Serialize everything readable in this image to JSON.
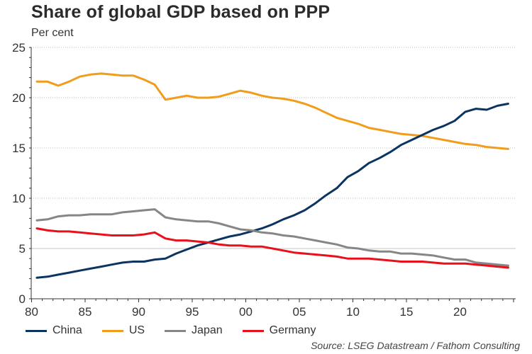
{
  "header": {
    "title": "Share of global GDP based on PPP",
    "unit": "Per cent"
  },
  "source": "Source: LSEG Datastream / Fathom Consulting",
  "chart_data": {
    "type": "line",
    "title": "Share of global GDP based on PPP",
    "ylabel": "Per cent",
    "xlabel": "",
    "ylim": [
      0,
      25
    ],
    "xlim": [
      1980,
      2025
    ],
    "yticks": [
      0,
      5,
      10,
      15,
      20,
      25
    ],
    "xticks": [
      {
        "value": 1980,
        "label": "80"
      },
      {
        "value": 1985,
        "label": "85"
      },
      {
        "value": 1990,
        "label": "90"
      },
      {
        "value": 1995,
        "label": "95"
      },
      {
        "value": 2000,
        "label": "00"
      },
      {
        "value": 2005,
        "label": "05"
      },
      {
        "value": 2010,
        "label": "10"
      },
      {
        "value": 2015,
        "label": "15"
      },
      {
        "value": 2020,
        "label": "20"
      }
    ],
    "grid": true,
    "legend_position": "bottom",
    "x": [
      1980,
      1981,
      1982,
      1983,
      1984,
      1985,
      1986,
      1987,
      1988,
      1989,
      1990,
      1991,
      1992,
      1993,
      1994,
      1995,
      1996,
      1997,
      1998,
      1999,
      2000,
      2001,
      2002,
      2003,
      2004,
      2005,
      2006,
      2007,
      2008,
      2009,
      2010,
      2011,
      2012,
      2013,
      2014,
      2015,
      2016,
      2017,
      2018,
      2019,
      2020,
      2021,
      2022,
      2023,
      2024
    ],
    "series": [
      {
        "name": "China",
        "color": "#0b3560",
        "values": [
          2.1,
          2.2,
          2.4,
          2.6,
          2.8,
          3.0,
          3.2,
          3.4,
          3.6,
          3.7,
          3.7,
          3.9,
          4.0,
          4.5,
          4.9,
          5.3,
          5.6,
          5.9,
          6.2,
          6.4,
          6.7,
          7.0,
          7.4,
          7.9,
          8.3,
          8.8,
          9.5,
          10.3,
          11.0,
          12.1,
          12.7,
          13.5,
          14.0,
          14.6,
          15.3,
          15.8,
          16.3,
          16.8,
          17.2,
          17.7,
          18.6,
          18.9,
          18.8,
          19.2,
          19.4
        ]
      },
      {
        "name": "US",
        "color": "#f29c1b",
        "values": [
          21.6,
          21.6,
          21.2,
          21.6,
          22.1,
          22.3,
          22.4,
          22.3,
          22.2,
          22.2,
          21.8,
          21.3,
          19.8,
          20.0,
          20.2,
          20.0,
          20.0,
          20.1,
          20.4,
          20.7,
          20.5,
          20.2,
          20.0,
          19.9,
          19.7,
          19.4,
          19.0,
          18.5,
          18.0,
          17.7,
          17.4,
          17.0,
          16.8,
          16.6,
          16.4,
          16.3,
          16.2,
          16.0,
          15.8,
          15.6,
          15.4,
          15.3,
          15.1,
          15.0,
          14.9
        ]
      },
      {
        "name": "Japan",
        "color": "#868686",
        "values": [
          7.8,
          7.9,
          8.2,
          8.3,
          8.3,
          8.4,
          8.4,
          8.4,
          8.6,
          8.7,
          8.8,
          8.9,
          8.1,
          7.9,
          7.8,
          7.7,
          7.7,
          7.5,
          7.2,
          6.9,
          6.8,
          6.6,
          6.5,
          6.3,
          6.2,
          6.0,
          5.8,
          5.6,
          5.4,
          5.1,
          5.0,
          4.8,
          4.7,
          4.7,
          4.5,
          4.5,
          4.4,
          4.3,
          4.1,
          3.9,
          3.9,
          3.6,
          3.5,
          3.4,
          3.3
        ]
      },
      {
        "name": "Germany",
        "color": "#e8101a",
        "values": [
          7.0,
          6.8,
          6.7,
          6.7,
          6.6,
          6.5,
          6.4,
          6.3,
          6.3,
          6.3,
          6.4,
          6.6,
          6.0,
          5.8,
          5.8,
          5.7,
          5.6,
          5.4,
          5.3,
          5.3,
          5.2,
          5.2,
          5.0,
          4.8,
          4.6,
          4.5,
          4.4,
          4.3,
          4.2,
          4.0,
          4.0,
          4.0,
          3.9,
          3.8,
          3.7,
          3.7,
          3.7,
          3.6,
          3.5,
          3.5,
          3.5,
          3.4,
          3.3,
          3.2,
          3.1
        ]
      }
    ]
  }
}
